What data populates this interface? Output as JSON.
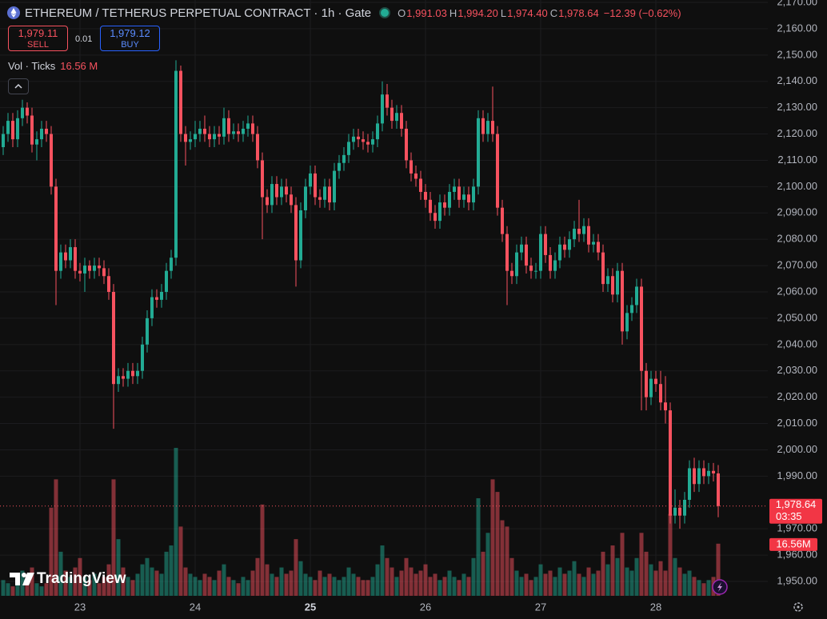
{
  "header": {
    "symbol": "ETHEREUM / TETHERUS PERPETUAL CONTRACT · 1h · Gate",
    "ohlc": [
      {
        "key": "O",
        "value": "1,991.03"
      },
      {
        "key": "H",
        "value": "1,994.20"
      },
      {
        "key": "L",
        "value": "1,974.40"
      },
      {
        "key": "C",
        "value": "1,978.64"
      }
    ],
    "change": "−12.39 (−0.62%)"
  },
  "trade": {
    "sell_price": "1,979.11",
    "sell": "SELL",
    "quantity": "0.01",
    "buy_price": "1,979.12",
    "buy": "BUY"
  },
  "volume_legend": {
    "name": "Vol · Ticks",
    "value": "16.56 M"
  },
  "price_tag": {
    "price": "1,978.64",
    "countdown": "03:35"
  },
  "volume_tag": "16.56M",
  "logo": "TradingView",
  "chart_data": {
    "type": "candlestick",
    "up_color": "#22ab94",
    "down_color": "#f7525f",
    "grid": true,
    "categories": [
      null,
      null,
      null,
      null,
      null,
      null,
      null,
      null,
      null,
      null,
      null,
      null,
      null,
      null,
      null,
      null,
      "23",
      null,
      null,
      null,
      null,
      null,
      null,
      null,
      null,
      null,
      null,
      null,
      null,
      null,
      null,
      null,
      null,
      null,
      null,
      null,
      null,
      null,
      null,
      null,
      "24",
      null,
      null,
      null,
      null,
      null,
      null,
      null,
      null,
      null,
      null,
      null,
      null,
      null,
      null,
      null,
      null,
      null,
      null,
      null,
      null,
      null,
      null,
      null,
      "25",
      null,
      null,
      null,
      null,
      null,
      null,
      null,
      null,
      null,
      null,
      null,
      null,
      null,
      null,
      null,
      null,
      null,
      null,
      null,
      null,
      null,
      null,
      null,
      "26",
      null,
      null,
      null,
      null,
      null,
      null,
      null,
      null,
      null,
      null,
      null,
      null,
      null,
      null,
      null,
      null,
      null,
      null,
      null,
      null,
      null,
      null,
      null,
      "27",
      null,
      null,
      null,
      null,
      null,
      null,
      null,
      null,
      null,
      null,
      null,
      null,
      null,
      null,
      null,
      null,
      null,
      null,
      null,
      null,
      null,
      null,
      null,
      "28",
      null,
      null,
      null,
      null,
      null,
      null,
      null,
      null,
      null,
      null,
      null,
      null,
      null
    ],
    "open": [
      2115,
      2120,
      2125,
      2118,
      2126,
      2130,
      2127,
      2116,
      2118,
      2122,
      2120,
      2100,
      2068,
      2075,
      2072,
      2077,
      2068,
      2067,
      2070,
      2068,
      2070,
      2069,
      2066,
      2060,
      2025,
      2028,
      2027,
      2030,
      2028,
      2030,
      2040,
      2050,
      2058,
      2057,
      2060,
      2068,
      2073,
      2144,
      2120,
      2117,
      2118,
      2120,
      2122,
      2120,
      2118,
      2120,
      2119,
      2126,
      2120,
      2121,
      2120,
      2122,
      2124,
      2120,
      2110,
      2096,
      2093,
      2101,
      2096,
      2100,
      2097,
      2093,
      2072,
      2091,
      2100,
      2105,
      2096,
      2095,
      2100,
      2094,
      2106,
      2109,
      2112,
      2117,
      2119,
      2118,
      2117,
      2116,
      2118,
      2124,
      2135,
      2130,
      2125,
      2128,
      2122,
      2110,
      2105,
      2103,
      2098,
      2095,
      2090,
      2087,
      2094,
      2092,
      2098,
      2100,
      2095,
      2097,
      2094,
      2100,
      2126,
      2120,
      2125,
      2120,
      2092,
      2082,
      2068,
      2066,
      2075,
      2078,
      2070,
      2068,
      2068,
      2082,
      2074,
      2068,
      2072,
      2078,
      2076,
      2080,
      2084,
      2082,
      2085,
      2078,
      2079,
      2075,
      2063,
      2066,
      2059,
      2068,
      2045,
      2052,
      2055,
      2062,
      2030,
      2020,
      2027,
      2025,
      2018,
      2015,
      1975,
      1978,
      1975,
      1981,
      1993,
      1987,
      1993,
      1990,
      1992,
      1991.03
    ],
    "high": [
      2123,
      2128,
      2128,
      2129,
      2133,
      2132,
      2130,
      2121,
      2125,
      2125,
      2123,
      2103,
      2078,
      2078,
      2080,
      2080,
      2071,
      2073,
      2072,
      2073,
      2073,
      2072,
      2069,
      2063,
      2031,
      2031,
      2033,
      2033,
      2033,
      2043,
      2053,
      2061,
      2061,
      2063,
      2071,
      2076,
      2148,
      2146,
      2123,
      2121,
      2125,
      2125,
      2127,
      2123,
      2123,
      2123,
      2130,
      2129,
      2124,
      2124,
      2125,
      2127,
      2127,
      2123,
      2113,
      2099,
      2104,
      2104,
      2103,
      2103,
      2100,
      2096,
      2094,
      2103,
      2108,
      2108,
      2099,
      2103,
      2103,
      2109,
      2112,
      2115,
      2120,
      2122,
      2122,
      2121,
      2120,
      2121,
      2127,
      2140,
      2139,
      2133,
      2131,
      2131,
      2125,
      2113,
      2108,
      2106,
      2101,
      2098,
      2093,
      2097,
      2097,
      2101,
      2103,
      2103,
      2100,
      2100,
      2103,
      2129,
      2129,
      2128,
      2138,
      2123,
      2095,
      2085,
      2071,
      2078,
      2081,
      2081,
      2073,
      2071,
      2085,
      2085,
      2077,
      2075,
      2081,
      2081,
      2083,
      2087,
      2095,
      2088,
      2088,
      2082,
      2082,
      2078,
      2069,
      2069,
      2071,
      2071,
      2055,
      2058,
      2065,
      2065,
      2033,
      2030,
      2030,
      2030,
      2028,
      2018,
      1985,
      1981,
      1984,
      1996,
      1997,
      1996,
      1996,
      1995,
      1995,
      1994.2
    ],
    "low": [
      2112,
      2117,
      2115,
      2115,
      2123,
      2124,
      2113,
      2110,
      2115,
      2117,
      2097,
      2055,
      2065,
      2069,
      2069,
      2065,
      2064,
      2060,
      2065,
      2065,
      2066,
      2063,
      2057,
      2008,
      2022,
      2024,
      2024,
      2025,
      2025,
      2027,
      2037,
      2047,
      2054,
      2054,
      2057,
      2065,
      2070,
      2117,
      2108,
      2114,
      2115,
      2117,
      2117,
      2115,
      2115,
      2116,
      2116,
      2117,
      2118,
      2117,
      2117,
      2119,
      2117,
      2107,
      2080,
      2090,
      2090,
      2093,
      2093,
      2094,
      2090,
      2062,
      2069,
      2088,
      2097,
      2093,
      2092,
      2092,
      2091,
      2091,
      2103,
      2106,
      2109,
      2114,
      2115,
      2114,
      2113,
      2113,
      2115,
      2121,
      2127,
      2122,
      2122,
      2119,
      2107,
      2102,
      2100,
      2095,
      2092,
      2087,
      2084,
      2084,
      2089,
      2089,
      2095,
      2092,
      2092,
      2091,
      2091,
      2097,
      2117,
      2117,
      2117,
      2089,
      2079,
      2055,
      2063,
      2063,
      2072,
      2067,
      2065,
      2065,
      2065,
      2071,
      2065,
      2065,
      2069,
      2073,
      2073,
      2077,
      2079,
      2079,
      2075,
      2075,
      2072,
      2060,
      2060,
      2056,
      2056,
      2040,
      2042,
      2049,
      2052,
      2015,
      2015,
      2017,
      2022,
      2015,
      2010,
      1972,
      1972,
      1970,
      1972,
      1978,
      1984,
      1984,
      1987,
      1987,
      1988,
      1974.4
    ],
    "close": [
      2120,
      2125,
      2118,
      2126,
      2130,
      2127,
      2116,
      2118,
      2122,
      2120,
      2100,
      2068,
      2075,
      2072,
      2077,
      2068,
      2067,
      2070,
      2068,
      2070,
      2069,
      2066,
      2060,
      2025,
      2028,
      2027,
      2030,
      2028,
      2030,
      2040,
      2050,
      2058,
      2057,
      2060,
      2068,
      2073,
      2144,
      2120,
      2117,
      2118,
      2120,
      2122,
      2120,
      2118,
      2120,
      2119,
      2126,
      2120,
      2121,
      2120,
      2122,
      2124,
      2120,
      2110,
      2096,
      2093,
      2101,
      2096,
      2100,
      2097,
      2093,
      2072,
      2091,
      2100,
      2105,
      2096,
      2095,
      2100,
      2094,
      2106,
      2109,
      2112,
      2117,
      2119,
      2118,
      2117,
      2116,
      2118,
      2124,
      2135,
      2130,
      2125,
      2128,
      2122,
      2110,
      2105,
      2103,
      2098,
      2095,
      2090,
      2087,
      2094,
      2092,
      2098,
      2100,
      2095,
      2097,
      2094,
      2100,
      2126,
      2120,
      2125,
      2120,
      2092,
      2082,
      2068,
      2066,
      2075,
      2078,
      2070,
      2068,
      2068,
      2082,
      2074,
      2068,
      2072,
      2078,
      2076,
      2080,
      2084,
      2082,
      2085,
      2078,
      2079,
      2075,
      2063,
      2066,
      2059,
      2068,
      2045,
      2052,
      2055,
      2062,
      2030,
      2020,
      2027,
      2025,
      2018,
      2015,
      1975,
      1978,
      1975,
      1981,
      1993,
      1987,
      1993,
      1990,
      1992,
      1991.03,
      1978.64
    ],
    "volume": [
      5,
      4,
      3,
      6,
      8,
      5,
      9,
      4,
      3,
      4,
      28,
      37,
      14,
      8,
      6,
      9,
      12,
      6,
      5,
      7,
      4,
      6,
      10,
      37,
      18,
      9,
      6,
      5,
      7,
      10,
      12,
      9,
      8,
      7,
      14,
      16,
      47,
      22,
      9,
      7,
      6,
      5,
      7,
      6,
      5,
      8,
      10,
      6,
      5,
      4,
      6,
      5,
      8,
      12,
      29,
      10,
      7,
      6,
      9,
      7,
      8,
      18,
      11,
      7,
      6,
      5,
      8,
      6,
      7,
      6,
      5,
      6,
      9,
      7,
      6,
      5,
      5,
      6,
      10,
      16,
      12,
      9,
      6,
      8,
      12,
      9,
      7,
      8,
      10,
      6,
      7,
      5,
      6,
      8,
      6,
      5,
      7,
      6,
      12,
      31,
      14,
      20,
      37,
      33,
      24,
      22,
      12,
      8,
      6,
      7,
      5,
      6,
      10,
      7,
      8,
      6,
      9,
      7,
      8,
      11,
      7,
      6,
      9,
      7,
      8,
      14,
      10,
      16,
      12,
      20,
      9,
      8,
      12,
      20,
      14,
      10,
      8,
      11,
      8,
      26,
      12,
      9,
      7,
      8,
      6,
      5,
      4,
      5,
      6,
      16.56
    ],
    "ylim": [
      1950,
      2170
    ],
    "yticks": [
      {
        "value": 2170,
        "label": "2,170.00"
      },
      {
        "value": 2160,
        "label": "2,160.00"
      },
      {
        "value": 2150,
        "label": "2,150.00"
      },
      {
        "value": 2140,
        "label": "2,140.00"
      },
      {
        "value": 2130,
        "label": "2,130.00"
      },
      {
        "value": 2120,
        "label": "2,120.00"
      },
      {
        "value": 2110,
        "label": "2,110.00"
      },
      {
        "value": 2100,
        "label": "2,100.00"
      },
      {
        "value": 2090,
        "label": "2,090.00"
      },
      {
        "value": 2080,
        "label": "2,080.00"
      },
      {
        "value": 2070,
        "label": "2,070.00"
      },
      {
        "value": 2060,
        "label": "2,060.00"
      },
      {
        "value": 2050,
        "label": "2,050.00"
      },
      {
        "value": 2040,
        "label": "2,040.00"
      },
      {
        "value": 2030,
        "label": "2,030.00"
      },
      {
        "value": 2020,
        "label": "2,020.00"
      },
      {
        "value": 2010,
        "label": "2,010.00"
      },
      {
        "value": 2000,
        "label": "2,000.00"
      },
      {
        "value": 1990,
        "label": "1,990.00"
      },
      {
        "value": 1970,
        "label": "1,970.00"
      },
      {
        "value": 1960,
        "label": "1,960.00"
      },
      {
        "value": 1950,
        "label": "1,950.00"
      }
    ]
  }
}
